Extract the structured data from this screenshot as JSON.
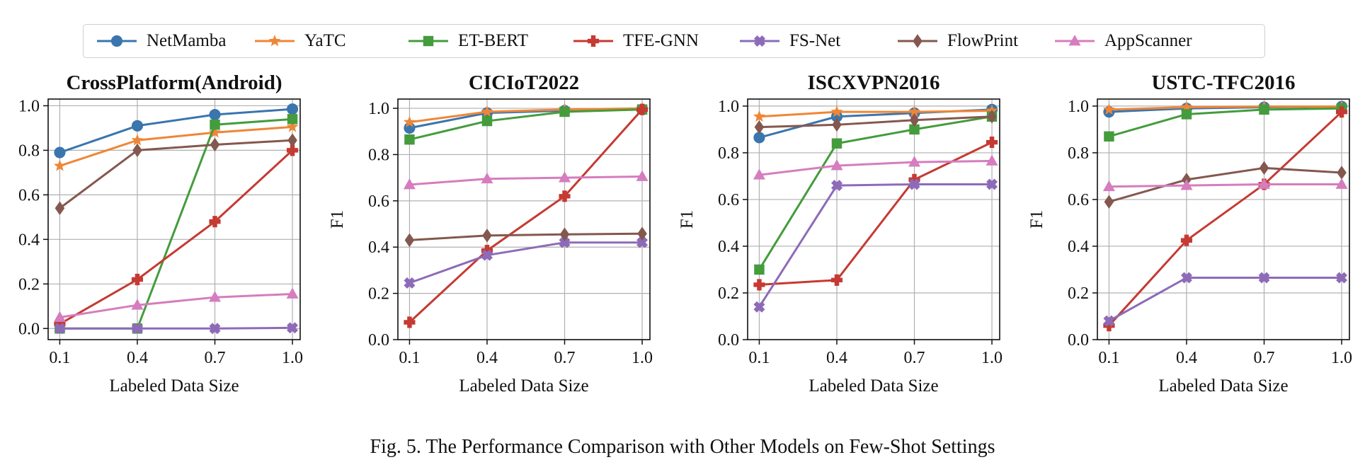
{
  "legend": [
    {
      "name": "NetMamba",
      "color": "#3a75ae",
      "marker": "circle"
    },
    {
      "name": "YaTC",
      "color": "#ef8636",
      "marker": "star"
    },
    {
      "name": "ET-BERT",
      "color": "#449c3c",
      "marker": "square"
    },
    {
      "name": "TFE-GNN",
      "color": "#c53a32",
      "marker": "plus"
    },
    {
      "name": "FS-Net",
      "color": "#8d6bb8",
      "marker": "x"
    },
    {
      "name": "FlowPrint",
      "color": "#84584e",
      "marker": "diamond"
    },
    {
      "name": "AppScanner",
      "color": "#d57dbe",
      "marker": "triangle"
    }
  ],
  "chart_data": [
    {
      "type": "line",
      "title": "CrossPlatform(Android)",
      "xlabel": "Labeled Data Size",
      "ylabel": "",
      "x": [
        0.1,
        0.4,
        0.7,
        1.0
      ],
      "xticks": [
        "0.1",
        "0.4",
        "0.7",
        "1.0"
      ],
      "ylim": [
        -0.05,
        1.03
      ],
      "yticks": [
        "0.0",
        "0.2",
        "0.4",
        "0.6",
        "0.8",
        "1.0"
      ],
      "grid": true,
      "series": [
        {
          "name": "NetMamba",
          "values": [
            0.79,
            0.91,
            0.96,
            0.985
          ]
        },
        {
          "name": "YaTC",
          "values": [
            0.73,
            0.845,
            0.88,
            0.905
          ]
        },
        {
          "name": "ET-BERT",
          "values": [
            0.0,
            0.0,
            0.915,
            0.94
          ]
        },
        {
          "name": "TFE-GNN",
          "values": [
            0.02,
            0.22,
            0.48,
            0.8
          ]
        },
        {
          "name": "FS-Net",
          "values": [
            0.0,
            0.0,
            0.0,
            0.003
          ]
        },
        {
          "name": "FlowPrint",
          "values": [
            0.54,
            0.8,
            0.825,
            0.845
          ]
        },
        {
          "name": "AppScanner",
          "values": [
            0.05,
            0.105,
            0.14,
            0.155
          ]
        }
      ]
    },
    {
      "type": "line",
      "title": "CICIoT2022",
      "xlabel": "Labeled Data Size",
      "ylabel": "F1",
      "x": [
        0.1,
        0.4,
        0.7,
        1.0
      ],
      "xticks": [
        "0.1",
        "0.4",
        "0.7",
        "1.0"
      ],
      "ylim": [
        0.0,
        1.04
      ],
      "yticks": [
        "0.0",
        "0.2",
        "0.4",
        "0.6",
        "0.8",
        "1.0"
      ],
      "grid": true,
      "series": [
        {
          "name": "NetMamba",
          "values": [
            0.915,
            0.98,
            0.99,
            0.995
          ]
        },
        {
          "name": "YaTC",
          "values": [
            0.94,
            0.985,
            0.995,
            1.0
          ]
        },
        {
          "name": "ET-BERT",
          "values": [
            0.865,
            0.945,
            0.985,
            0.995
          ]
        },
        {
          "name": "TFE-GNN",
          "values": [
            0.075,
            0.385,
            0.62,
            0.995
          ]
        },
        {
          "name": "FS-Net",
          "values": [
            0.245,
            0.365,
            0.42,
            0.42
          ]
        },
        {
          "name": "FlowPrint",
          "values": [
            0.43,
            0.45,
            0.455,
            0.458
          ]
        },
        {
          "name": "AppScanner",
          "values": [
            0.67,
            0.695,
            0.7,
            0.705
          ]
        }
      ]
    },
    {
      "type": "line",
      "title": "ISCXVPN2016",
      "xlabel": "Labeled Data Size",
      "ylabel": "F1",
      "x": [
        0.1,
        0.4,
        0.7,
        1.0
      ],
      "xticks": [
        "0.1",
        "0.4",
        "0.7",
        "1.0"
      ],
      "ylim": [
        0.0,
        1.03
      ],
      "yticks": [
        "0.0",
        "0.2",
        "0.4",
        "0.6",
        "0.8",
        "1.0"
      ],
      "grid": true,
      "series": [
        {
          "name": "NetMamba",
          "values": [
            0.865,
            0.955,
            0.97,
            0.985
          ]
        },
        {
          "name": "YaTC",
          "values": [
            0.955,
            0.975,
            0.975,
            0.98
          ]
        },
        {
          "name": "ET-BERT",
          "values": [
            0.3,
            0.84,
            0.9,
            0.955
          ]
        },
        {
          "name": "TFE-GNN",
          "values": [
            0.235,
            0.255,
            0.685,
            0.845
          ]
        },
        {
          "name": "FS-Net",
          "values": [
            0.14,
            0.66,
            0.665,
            0.665
          ]
        },
        {
          "name": "FlowPrint",
          "values": [
            0.91,
            0.92,
            0.94,
            0.955
          ]
        },
        {
          "name": "AppScanner",
          "values": [
            0.705,
            0.745,
            0.76,
            0.765
          ]
        }
      ]
    },
    {
      "type": "line",
      "title": "USTC-TFC2016",
      "xlabel": "Labeled Data Size",
      "ylabel": "F1",
      "x": [
        0.1,
        0.4,
        0.7,
        1.0
      ],
      "xticks": [
        "0.1",
        "0.4",
        "0.7",
        "1.0"
      ],
      "ylim": [
        0.0,
        1.03
      ],
      "yticks": [
        "0.0",
        "0.2",
        "0.4",
        "0.6",
        "0.8",
        "1.0"
      ],
      "grid": true,
      "series": [
        {
          "name": "NetMamba",
          "values": [
            0.975,
            0.99,
            0.995,
            0.998
          ]
        },
        {
          "name": "YaTC",
          "values": [
            0.985,
            0.995,
            0.998,
            0.998
          ]
        },
        {
          "name": "ET-BERT",
          "values": [
            0.87,
            0.965,
            0.985,
            0.99
          ]
        },
        {
          "name": "TFE-GNN",
          "values": [
            0.06,
            0.425,
            0.665,
            0.975
          ]
        },
        {
          "name": "FS-Net",
          "values": [
            0.08,
            0.265,
            0.265,
            0.265
          ]
        },
        {
          "name": "FlowPrint",
          "values": [
            0.59,
            0.685,
            0.735,
            0.715
          ]
        },
        {
          "name": "AppScanner",
          "values": [
            0.655,
            0.66,
            0.665,
            0.665
          ]
        }
      ]
    }
  ],
  "caption": "Fig. 5.  The Performance Comparison with Other Models on Few-Shot Settings"
}
